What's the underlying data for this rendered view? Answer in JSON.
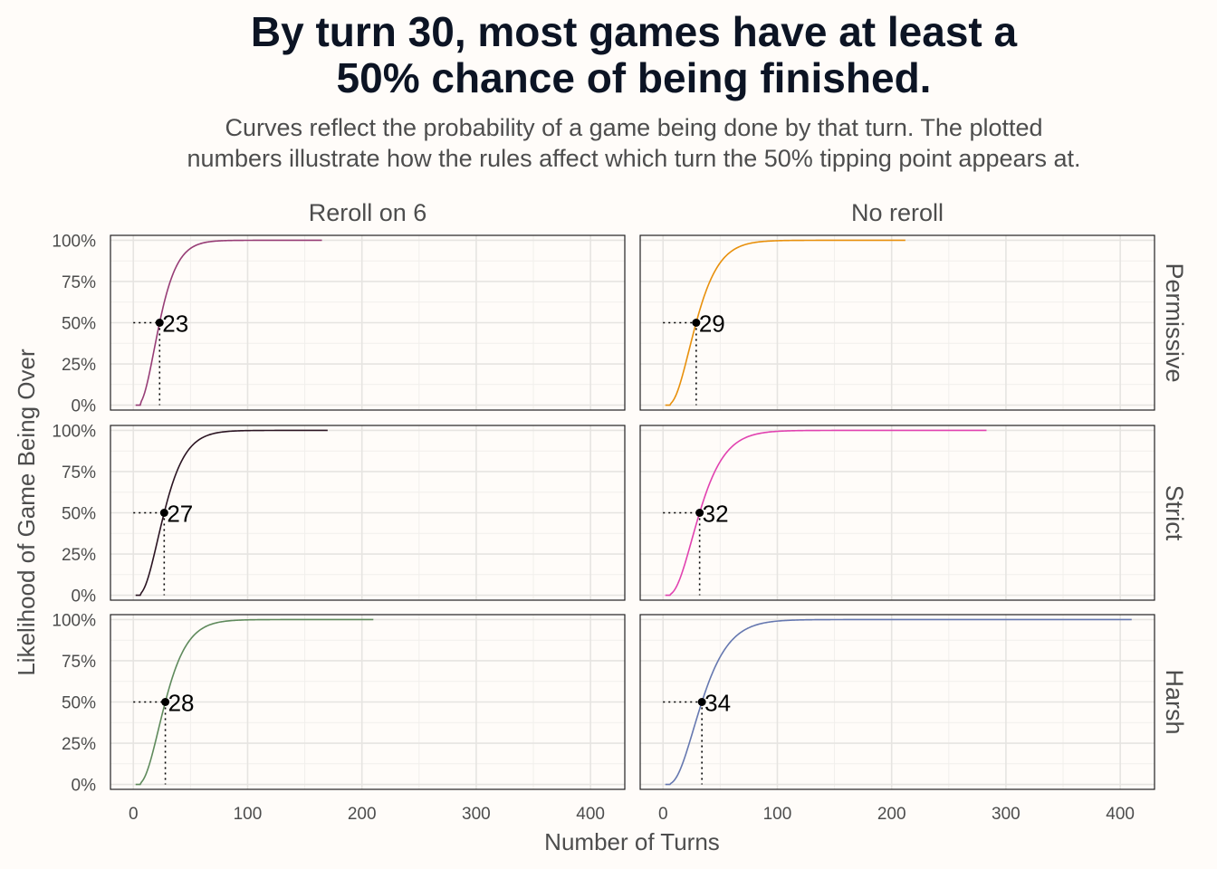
{
  "title": [
    "By turn 30, most games have at least a",
    "50% chance of being finished."
  ],
  "subtitle": [
    "Curves reflect the probability of a game being done by that turn. The plotted",
    "numbers illustrate how the rules affect which turn the 50% tipping point appears at."
  ],
  "chart_data": {
    "type": "line",
    "facet_columns": [
      "Reroll on 6",
      "No reroll"
    ],
    "facet_rows": [
      "Permissive",
      "Strict",
      "Harsh"
    ],
    "xlabel": "Number of Turns",
    "ylabel": "Likelihood of Game Being Over",
    "xlim": [
      -20,
      430
    ],
    "ylim": [
      -0.03,
      1.03
    ],
    "xticks": [
      0,
      100,
      200,
      300,
      400
    ],
    "xtick_labels": [
      "0",
      "100",
      "200",
      "300",
      "400"
    ],
    "yticks": [
      0,
      0.25,
      0.5,
      0.75,
      1
    ],
    "ytick_labels": [
      "0%",
      "25%",
      "50%",
      "75%",
      "100%"
    ],
    "grid": true,
    "panels": [
      {
        "column": "Reroll on 6",
        "row": "Permissive",
        "color": "#973d76",
        "x_start": 2,
        "x_end": 165,
        "median_turn": 23,
        "label": "23"
      },
      {
        "column": "No reroll",
        "row": "Permissive",
        "color": "#e8900c",
        "x_start": 2,
        "x_end": 212,
        "median_turn": 29,
        "label": "29"
      },
      {
        "column": "Reroll on 6",
        "row": "Strict",
        "color": "#2b1422",
        "x_start": 2,
        "x_end": 170,
        "median_turn": 27,
        "label": "27"
      },
      {
        "column": "No reroll",
        "row": "Strict",
        "color": "#e142b0",
        "x_start": 2,
        "x_end": 283,
        "median_turn": 32,
        "label": "32"
      },
      {
        "column": "Reroll on 6",
        "row": "Harsh",
        "color": "#5f8a5c",
        "x_start": 2,
        "x_end": 210,
        "median_turn": 28,
        "label": "28"
      },
      {
        "column": "No reroll",
        "row": "Harsh",
        "color": "#6678b0",
        "x_start": 2,
        "x_end": 410,
        "median_turn": 34,
        "label": "34"
      }
    ]
  }
}
